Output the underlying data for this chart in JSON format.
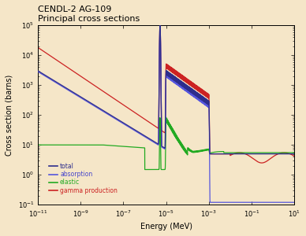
{
  "title_line1": "CENDL-2 AG-109",
  "title_line2": "Principal cross sections",
  "xlabel": "Energy (MeV)",
  "ylabel": "Cross section (barns)",
  "xlim_log": [
    -11,
    1
  ],
  "ylim_log": [
    -1,
    5
  ],
  "background_color": "#f5e6c8",
  "legend_entries": [
    "total",
    "absorption",
    "elastic",
    "gamma production"
  ],
  "legend_colors": [
    "#2d2d8c",
    "#4444cc",
    "#22aa22",
    "#cc2222"
  ],
  "line_colors": {
    "total": "#2d2d8c",
    "absorption": "#5555dd",
    "elastic": "#22aa22",
    "gamma_production": "#cc2222"
  }
}
